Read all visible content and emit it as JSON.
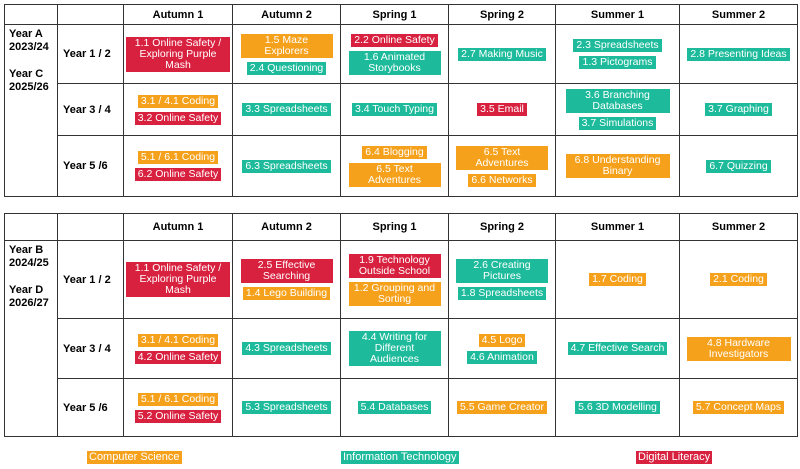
{
  "tables": [
    {
      "year_labels": [
        "Year A",
        "2023/24",
        "Year C",
        "2025/26"
      ],
      "headers": [
        "Autumn 1",
        "Autumn 2",
        "Spring 1",
        "Spring 2",
        "Summer 1",
        "Summer 2"
      ],
      "rows": [
        {
          "label": "Year 1 / 2",
          "cells": [
            [
              {
                "text": "1.1 Online Safety / Exploring Purple Mash",
                "color": "#d8203f"
              }
            ],
            [
              {
                "text": "1.5 Maze Explorers",
                "color": "#f5a11c"
              },
              {
                "text": "2.4 Questioning",
                "color": "#1dbb9b"
              }
            ],
            [
              {
                "text": "2.2 Online Safety",
                "color": "#d8203f"
              },
              {
                "text": "1.6 Animated Storybooks",
                "color": "#1dbb9b"
              }
            ],
            [
              {
                "text": "2.7 Making Music",
                "color": "#1dbb9b"
              }
            ],
            [
              {
                "text": "2.3 Spreadsheets",
                "color": "#1dbb9b"
              },
              {
                "text": "1.3 Pictograms",
                "color": "#1dbb9b"
              }
            ],
            [
              {
                "text": "2.8 Presenting Ideas",
                "color": "#1dbb9b"
              }
            ]
          ]
        },
        {
          "label": "Year 3 / 4",
          "cells": [
            [
              {
                "text": "3.1 / 4.1 Coding",
                "color": "#f5a11c"
              },
              {
                "text": "3.2 Online Safety",
                "color": "#d8203f"
              }
            ],
            [
              {
                "text": "3.3 Spreadsheets",
                "color": "#1dbb9b"
              }
            ],
            [
              {
                "text": "3.4 Touch Typing",
                "color": "#1dbb9b"
              }
            ],
            [
              {
                "text": "3.5 Email",
                "color": "#d8203f"
              }
            ],
            [
              {
                "text": "3.6 Branching Databases",
                "color": "#1dbb9b"
              },
              {
                "text": "3.7 Simulations",
                "color": "#1dbb9b"
              }
            ],
            [
              {
                "text": "3.7 Graphing",
                "color": "#1dbb9b"
              }
            ]
          ]
        },
        {
          "label": "Year 5 /6",
          "cells": [
            [
              {
                "text": "5.1  / 6.1 Coding",
                "color": "#f5a11c"
              },
              {
                "text": "6.2 Online Safety",
                "color": "#d8203f"
              }
            ],
            [
              {
                "text": "6.3 Spreadsheets",
                "color": "#1dbb9b"
              }
            ],
            [
              {
                "text": "6.4 Blogging",
                "color": "#f5a11c"
              },
              {
                "text": "6.5 Text Adventures",
                "color": "#f5a11c"
              }
            ],
            [
              {
                "text": "6.5 Text Adventures",
                "color": "#f5a11c"
              },
              {
                "text": "6.6 Networks",
                "color": "#f5a11c"
              }
            ],
            [
              {
                "text": "6.8 Understanding Binary",
                "color": "#f5a11c"
              }
            ],
            [
              {
                "text": "6.7 Quizzing",
                "color": "#1dbb9b"
              }
            ]
          ]
        }
      ]
    },
    {
      "year_labels": [
        "Year B",
        "2024/25",
        "Year D",
        "2026/27"
      ],
      "headers": [
        "Autumn 1",
        "Autumn 2",
        "Spring 1",
        "Spring 2",
        "Summer 1",
        "Summer 2"
      ],
      "rows": [
        {
          "label": "Year 1 / 2",
          "cells": [
            [
              {
                "text": "1.1 Online Safety / Exploring Purple Mash",
                "color": "#d8203f"
              }
            ],
            [
              {
                "text": "2.5 Effective Searching",
                "color": "#d8203f"
              },
              {
                "text": "1.4 Lego Building",
                "color": "#f5a11c"
              }
            ],
            [
              {
                "text": "1.9 Technology Outside School",
                "color": "#d8203f"
              },
              {
                "text": "1.2 Grouping and Sorting",
                "color": "#f5a11c"
              }
            ],
            [
              {
                "text": "2.6 Creating Pictures",
                "color": "#1dbb9b"
              },
              {
                "text": "1.8 Spreadsheets",
                "color": "#1dbb9b"
              }
            ],
            [
              {
                "text": "1.7 Coding",
                "color": "#f5a11c"
              }
            ],
            [
              {
                "text": "2.1 Coding",
                "color": "#f5a11c"
              }
            ]
          ]
        },
        {
          "label": "Year 3 / 4",
          "cells": [
            [
              {
                "text": "3.1 / 4.1 Coding",
                "color": "#f5a11c"
              },
              {
                "text": "4.2 Online Safety",
                "color": "#d8203f"
              }
            ],
            [
              {
                "text": "4.3 Spreadsheets",
                "color": "#1dbb9b"
              }
            ],
            [
              {
                "text": "4.4 Writing for Different Audiences",
                "color": "#1dbb9b"
              }
            ],
            [
              {
                "text": "4.5 Logo",
                "color": "#f5a11c"
              },
              {
                "text": "4.6 Animation",
                "color": "#1dbb9b"
              }
            ],
            [
              {
                "text": "4.7 Effective Search",
                "color": "#1dbb9b"
              }
            ],
            [
              {
                "text": "4.8 Hardware Investigators",
                "color": "#f5a11c"
              }
            ]
          ]
        },
        {
          "label": "Year 5 /6",
          "cells": [
            [
              {
                "text": "5.1  / 6.1 Coding",
                "color": "#f5a11c"
              },
              {
                "text": "5.2 Online Safety",
                "color": "#d8203f"
              }
            ],
            [
              {
                "text": "5.3 Spreadsheets",
                "color": "#1dbb9b"
              }
            ],
            [
              {
                "text": "5.4 Databases",
                "color": "#1dbb9b"
              }
            ],
            [
              {
                "text": "5.5 Game Creator",
                "color": "#f5a11c"
              }
            ],
            [
              {
                "text": "5.6 3D Modelling",
                "color": "#1dbb9b"
              }
            ],
            [
              {
                "text": "5.7 Concept Maps",
                "color": "#f5a11c"
              }
            ]
          ]
        }
      ]
    }
  ],
  "legend": [
    {
      "label": "Computer Science",
      "color": "#f5a11c"
    },
    {
      "label": "Information Technology",
      "color": "#1dbb9b"
    },
    {
      "label": "Digital Literacy",
      "color": "#d8203f"
    }
  ]
}
